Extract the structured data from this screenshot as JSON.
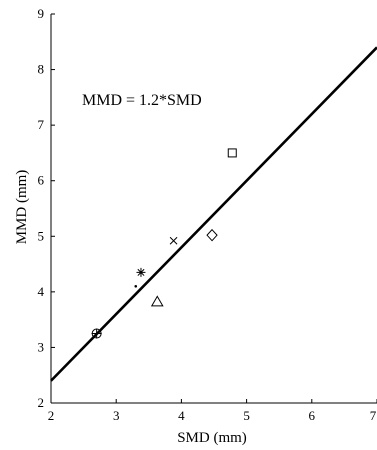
{
  "chart_data": {
    "type": "scatter",
    "xlabel": "SMD (mm)",
    "ylabel": "MMD (mm)",
    "xlim": [
      2,
      7
    ],
    "ylim": [
      2,
      9
    ],
    "xticks": [
      2,
      3,
      4,
      5,
      6,
      7
    ],
    "yticks": [
      2,
      3,
      4,
      5,
      6,
      7,
      8,
      9
    ],
    "grid": false,
    "annotation": "MMD = 1.2*SMD",
    "fit_line": {
      "slope": 1.2,
      "intercept": 0,
      "x_range": [
        2,
        7
      ]
    },
    "points": [
      {
        "marker": "circle",
        "x": 2.7,
        "y": 3.25
      },
      {
        "marker": "plus",
        "x": 2.7,
        "y": 3.25
      },
      {
        "marker": "dot",
        "x": 3.3,
        "y": 4.1
      },
      {
        "marker": "asterisk",
        "x": 3.38,
        "y": 4.35
      },
      {
        "marker": "triangle",
        "x": 3.63,
        "y": 3.82
      },
      {
        "marker": "x",
        "x": 3.88,
        "y": 4.92
      },
      {
        "marker": "diamond",
        "x": 4.47,
        "y": 5.02
      },
      {
        "marker": "square",
        "x": 4.78,
        "y": 6.5
      }
    ]
  }
}
